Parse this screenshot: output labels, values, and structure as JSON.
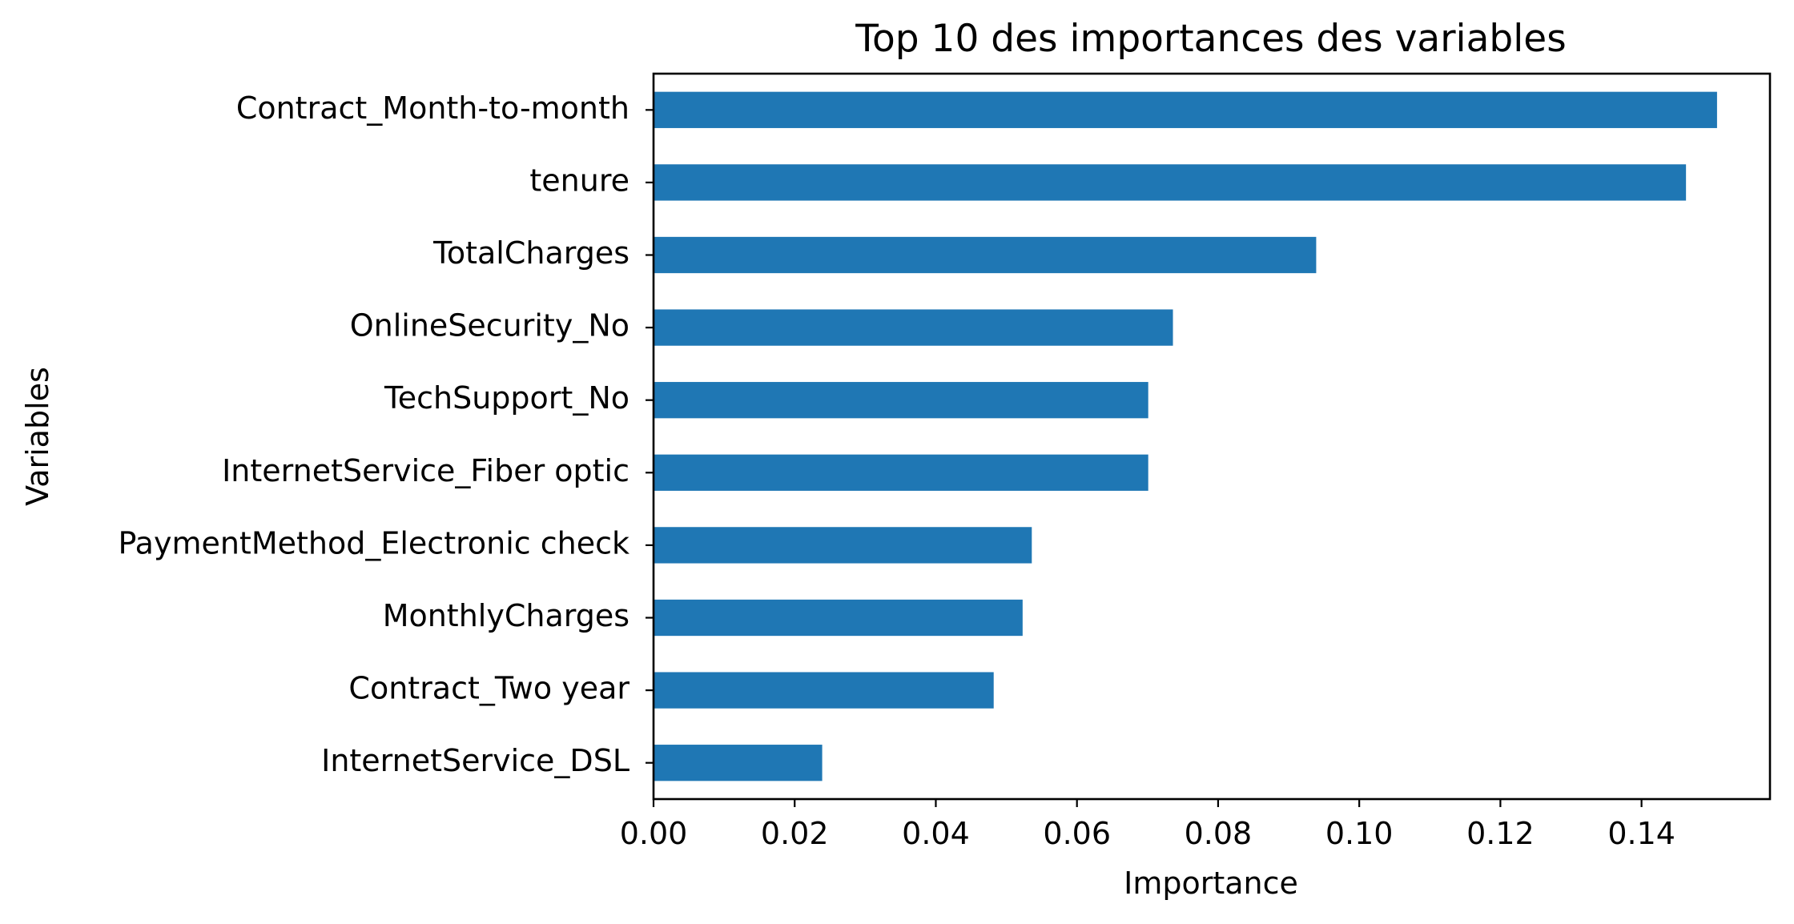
{
  "chart_data": {
    "type": "bar",
    "orientation": "horizontal",
    "title": "Top 10 des importances des variables",
    "xlabel": "Importance",
    "ylabel": "Variables",
    "categories": [
      "Contract_Month-to-month",
      "tenure",
      "TotalCharges",
      "OnlineSecurity_No",
      "TechSupport_No",
      "InternetService_Fiber optic",
      "PaymentMethod_Electronic check",
      "MonthlyCharges",
      "Contract_Two year",
      "InternetService_DSL"
    ],
    "values": [
      0.1507,
      0.1463,
      0.0939,
      0.0736,
      0.0701,
      0.0701,
      0.0536,
      0.0523,
      0.0482,
      0.0239
    ],
    "xlim": [
      0,
      0.1582
    ],
    "xticks": [
      0.0,
      0.02,
      0.04,
      0.06,
      0.08,
      0.1,
      0.12,
      0.14
    ],
    "xtick_labels": [
      "0.00",
      "0.02",
      "0.04",
      "0.06",
      "0.08",
      "0.10",
      "0.12",
      "0.14"
    ],
    "grid": false,
    "legend": "none",
    "bar_color": "#1f77b4"
  }
}
